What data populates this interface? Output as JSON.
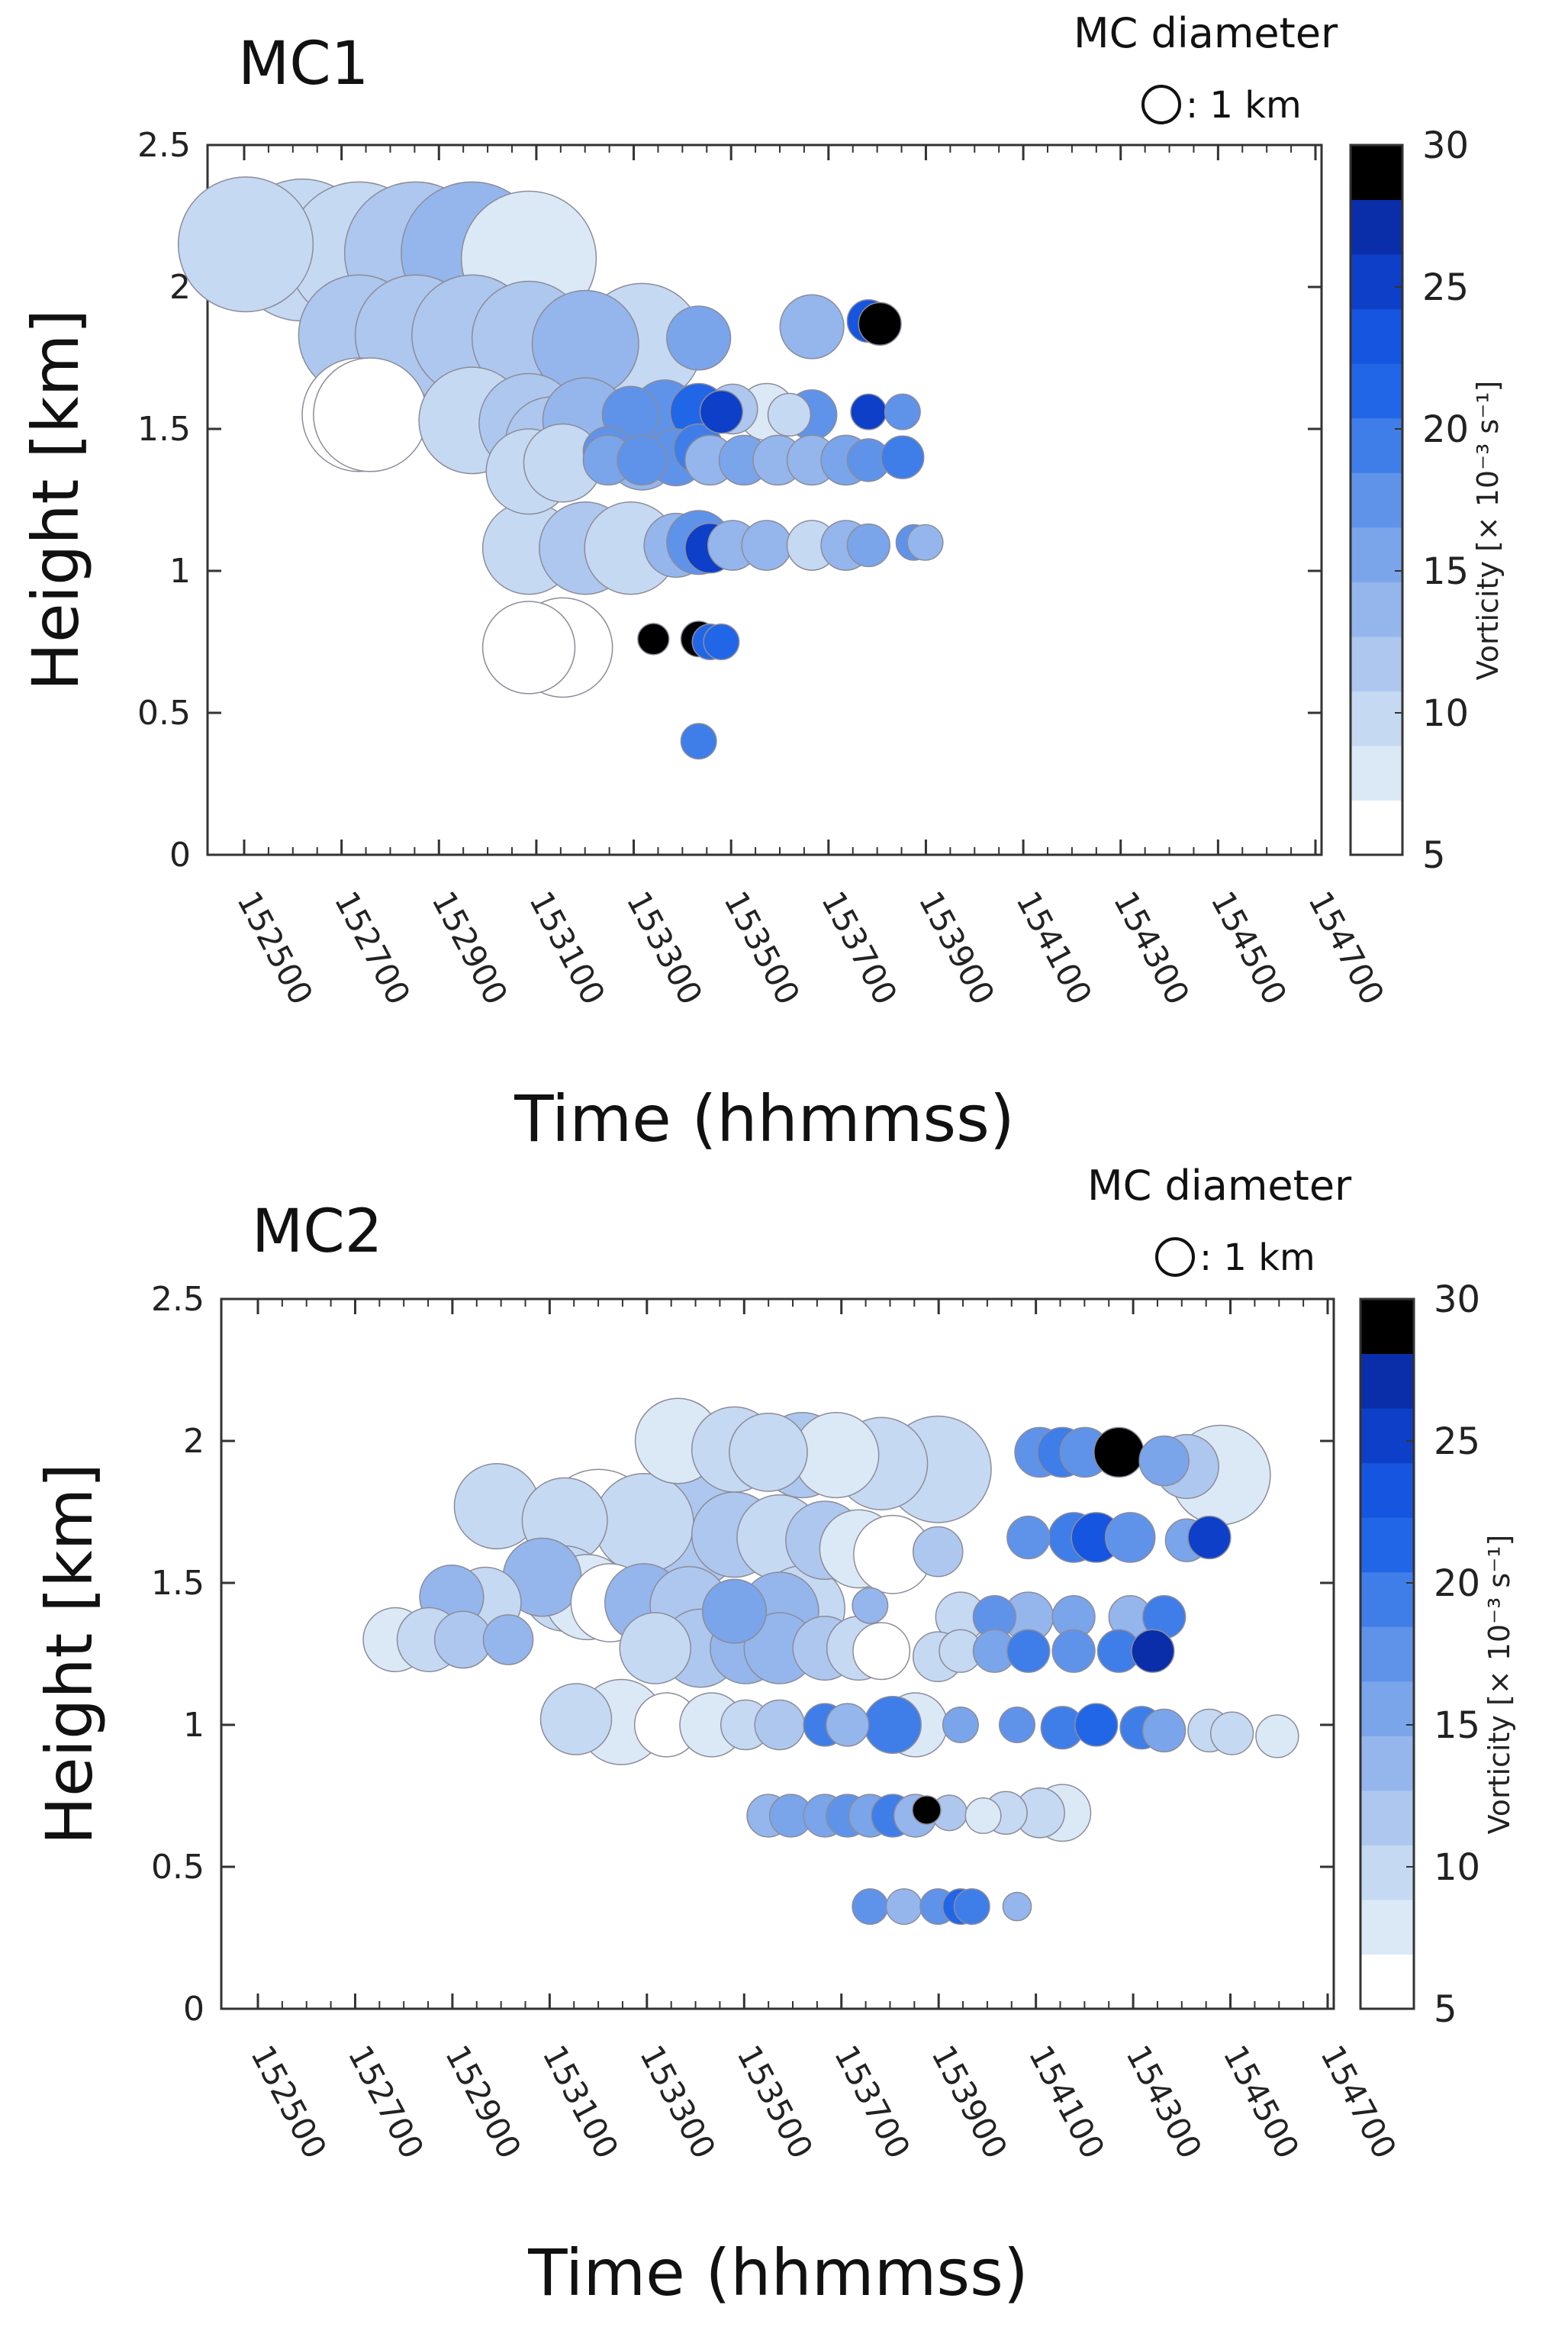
{
  "legend": {
    "title": "MC diameter",
    "note": ": 1 km"
  },
  "colorbar": {
    "label": "Vorticity [× 10⁻³ s⁻¹]",
    "min": 5,
    "max": 30,
    "ticks": [
      5,
      10,
      15,
      20,
      25,
      30
    ],
    "colors": [
      "#ffffff",
      "#dbe9f7",
      "#c5d9f2",
      "#aec7ee",
      "#94b6ec",
      "#7aa5ea",
      "#5f93ea",
      "#3f7ee8",
      "#2166e6",
      "#1655df",
      "#0d3fc8",
      "#0a2ea9",
      "#000000"
    ]
  },
  "chart_data": [
    {
      "type": "scatter",
      "title": "MC1",
      "xlabel": "Time (hhmmss)",
      "ylabel": "Height [km]",
      "xlim": [
        152400,
        154700
      ],
      "ylim": [
        0,
        2.5
      ],
      "xticks": [
        "152500",
        "152700",
        "152900",
        "153100",
        "153300",
        "153500",
        "153700",
        "153900",
        "154100",
        "154300",
        "154500",
        "154700"
      ],
      "yticks": [
        "0",
        "0.5",
        "1",
        "1.5",
        "2",
        "2.5"
      ],
      "points": [
        {
          "t": 0,
          "h": 2.15,
          "d": 0.95,
          "v": 9
        },
        {
          "t": 5,
          "h": 2.13,
          "d": 1.0,
          "v": 10
        },
        {
          "t": 10,
          "h": 2.12,
          "d": 1.0,
          "v": 10
        },
        {
          "t": 15,
          "h": 2.12,
          "d": 1.0,
          "v": 11
        },
        {
          "t": 20,
          "h": 2.12,
          "d": 1.0,
          "v": 13
        },
        {
          "t": 25,
          "h": 2.1,
          "d": 0.95,
          "v": 8
        },
        {
          "t": 10,
          "h": 1.83,
          "d": 0.85,
          "v": 11
        },
        {
          "t": 15,
          "h": 1.83,
          "d": 0.85,
          "v": 11
        },
        {
          "t": 20,
          "h": 1.83,
          "d": 0.85,
          "v": 12
        },
        {
          "t": 25,
          "h": 1.82,
          "d": 0.8,
          "v": 11
        },
        {
          "t": 30,
          "h": 1.8,
          "d": 0.75,
          "v": 14
        },
        {
          "t": 35,
          "h": 1.8,
          "d": 0.85,
          "v": 9
        },
        {
          "t": 40,
          "h": 1.82,
          "d": 0.45,
          "v": 16
        },
        {
          "t": 50,
          "h": 1.86,
          "d": 0.45,
          "v": 13
        },
        {
          "t": 55,
          "h": 1.88,
          "d": 0.3,
          "v": 23
        },
        {
          "t": 56,
          "h": 1.87,
          "d": 0.3,
          "v": 30
        },
        {
          "t": 10,
          "h": 1.55,
          "d": 0.8,
          "v": 5
        },
        {
          "t": 11,
          "h": 1.55,
          "d": 0.8,
          "v": 5
        },
        {
          "t": 20,
          "h": 1.53,
          "d": 0.75,
          "v": 10
        },
        {
          "t": 25,
          "h": 1.52,
          "d": 0.7,
          "v": 12
        },
        {
          "t": 30,
          "h": 1.53,
          "d": 0.6,
          "v": 14
        },
        {
          "t": 34,
          "h": 1.55,
          "d": 0.4,
          "v": 17
        },
        {
          "t": 37,
          "h": 1.56,
          "d": 0.45,
          "v": 18
        },
        {
          "t": 40,
          "h": 1.56,
          "d": 0.4,
          "v": 21
        },
        {
          "t": 42,
          "h": 1.56,
          "d": 0.3,
          "v": 26
        },
        {
          "t": 43,
          "h": 1.57,
          "d": 0.35,
          "v": 12
        },
        {
          "t": 46,
          "h": 1.56,
          "d": 0.4,
          "v": 7
        },
        {
          "t": 48,
          "h": 1.55,
          "d": 0.3,
          "v": 9
        },
        {
          "t": 50,
          "h": 1.55,
          "d": 0.35,
          "v": 18
        },
        {
          "t": 55,
          "h": 1.56,
          "d": 0.25,
          "v": 25
        },
        {
          "t": 58,
          "h": 1.56,
          "d": 0.25,
          "v": 18
        },
        {
          "t": 27,
          "h": 1.45,
          "d": 0.65,
          "v": 12
        },
        {
          "t": 32,
          "h": 1.42,
          "d": 0.35,
          "v": 17
        },
        {
          "t": 35,
          "h": 1.41,
          "d": 0.5,
          "v": 14
        },
        {
          "t": 25,
          "h": 1.35,
          "d": 0.6,
          "v": 10
        },
        {
          "t": 28,
          "h": 1.38,
          "d": 0.55,
          "v": 10
        },
        {
          "t": 32,
          "h": 1.39,
          "d": 0.35,
          "v": 15
        },
        {
          "t": 35,
          "h": 1.39,
          "d": 0.35,
          "v": 17
        },
        {
          "t": 38,
          "h": 1.4,
          "d": 0.4,
          "v": 18
        },
        {
          "t": 40,
          "h": 1.43,
          "d": 0.35,
          "v": 20
        },
        {
          "t": 41,
          "h": 1.39,
          "d": 0.35,
          "v": 14
        },
        {
          "t": 44,
          "h": 1.39,
          "d": 0.35,
          "v": 15
        },
        {
          "t": 47,
          "h": 1.39,
          "d": 0.35,
          "v": 14
        },
        {
          "t": 50,
          "h": 1.39,
          "d": 0.35,
          "v": 13
        },
        {
          "t": 53,
          "h": 1.39,
          "d": 0.35,
          "v": 15
        },
        {
          "t": 55,
          "h": 1.39,
          "d": 0.3,
          "v": 18
        },
        {
          "t": 58,
          "h": 1.4,
          "d": 0.3,
          "v": 20
        },
        {
          "t": 25,
          "h": 1.08,
          "d": 0.65,
          "v": 9
        },
        {
          "t": 30,
          "h": 1.08,
          "d": 0.65,
          "v": 12
        },
        {
          "t": 34,
          "h": 1.08,
          "d": 0.65,
          "v": 10
        },
        {
          "t": 38,
          "h": 1.09,
          "d": 0.45,
          "v": 14
        },
        {
          "t": 40,
          "h": 1.1,
          "d": 0.45,
          "v": 17
        },
        {
          "t": 41,
          "h": 1.08,
          "d": 0.35,
          "v": 26
        },
        {
          "t": 43,
          "h": 1.09,
          "d": 0.35,
          "v": 14
        },
        {
          "t": 46,
          "h": 1.09,
          "d": 0.35,
          "v": 14
        },
        {
          "t": 50,
          "h": 1.09,
          "d": 0.35,
          "v": 10
        },
        {
          "t": 53,
          "h": 1.09,
          "d": 0.35,
          "v": 13
        },
        {
          "t": 55,
          "h": 1.09,
          "d": 0.3,
          "v": 15
        },
        {
          "t": 59,
          "h": 1.1,
          "d": 0.25,
          "v": 18
        },
        {
          "t": 60,
          "h": 1.1,
          "d": 0.25,
          "v": 13
        },
        {
          "t": 25,
          "h": 0.73,
          "d": 0.65,
          "v": 5
        },
        {
          "t": 28,
          "h": 0.73,
          "d": 0.7,
          "v": 5
        },
        {
          "t": 36,
          "h": 0.76,
          "d": 0.22,
          "v": 30
        },
        {
          "t": 40,
          "h": 0.76,
          "d": 0.25,
          "v": 30
        },
        {
          "t": 41,
          "h": 0.75,
          "d": 0.25,
          "v": 22
        },
        {
          "t": 42,
          "h": 0.75,
          "d": 0.25,
          "v": 21
        },
        {
          "t": 40,
          "h": 0.4,
          "d": 0.25,
          "v": 20
        }
      ]
    },
    {
      "type": "scatter",
      "title": "MC2",
      "xlabel": "Time (hhmmss)",
      "ylabel": "Height [km]",
      "xlim": [
        152400,
        154700
      ],
      "ylim": [
        0,
        2.5
      ],
      "xticks": [
        "152500",
        "152700",
        "152900",
        "153100",
        "153300",
        "153500",
        "153700",
        "153900",
        "154100",
        "154300",
        "154500",
        "154700"
      ],
      "yticks": [
        "0",
        "0.5",
        "1",
        "1.5",
        "2",
        "2.5"
      ],
      "points": [
        {
          "t": 37,
          "h": 2.0,
          "d": 0.6,
          "v": 8
        },
        {
          "t": 42,
          "h": 1.97,
          "d": 0.6,
          "v": 9
        },
        {
          "t": 45,
          "h": 1.96,
          "d": 0.55,
          "v": 10
        },
        {
          "t": 48,
          "h": 1.95,
          "d": 0.6,
          "v": 11
        },
        {
          "t": 51,
          "h": 1.95,
          "d": 0.6,
          "v": 8
        },
        {
          "t": 55,
          "h": 1.92,
          "d": 0.65,
          "v": 9
        },
        {
          "t": 60,
          "h": 1.9,
          "d": 0.75,
          "v": 9
        },
        {
          "t": 69,
          "h": 1.96,
          "d": 0.35,
          "v": 18
        },
        {
          "t": 71,
          "h": 1.96,
          "d": 0.35,
          "v": 20
        },
        {
          "t": 73,
          "h": 1.96,
          "d": 0.35,
          "v": 17
        },
        {
          "t": 76,
          "h": 1.96,
          "d": 0.35,
          "v": 30
        },
        {
          "t": 80,
          "h": 1.93,
          "d": 0.35,
          "v": 15
        },
        {
          "t": 82,
          "h": 1.91,
          "d": 0.45,
          "v": 12
        },
        {
          "t": 85,
          "h": 1.88,
          "d": 0.7,
          "v": 8
        },
        {
          "t": 21,
          "h": 1.77,
          "d": 0.6,
          "v": 9
        },
        {
          "t": 27,
          "h": 1.72,
          "d": 0.6,
          "v": 9
        },
        {
          "t": 30,
          "h": 1.7,
          "d": 0.8,
          "v": 6
        },
        {
          "t": 34,
          "h": 1.71,
          "d": 0.7,
          "v": 10
        },
        {
          "t": 38,
          "h": 1.68,
          "d": 0.8,
          "v": 11
        },
        {
          "t": 42,
          "h": 1.67,
          "d": 0.6,
          "v": 12
        },
        {
          "t": 46,
          "h": 1.66,
          "d": 0.6,
          "v": 10
        },
        {
          "t": 50,
          "h": 1.65,
          "d": 0.55,
          "v": 12
        },
        {
          "t": 53,
          "h": 1.62,
          "d": 0.55,
          "v": 8
        },
        {
          "t": 56,
          "h": 1.6,
          "d": 0.55,
          "v": 6
        },
        {
          "t": 60,
          "h": 1.61,
          "d": 0.35,
          "v": 12
        },
        {
          "t": 68,
          "h": 1.66,
          "d": 0.3,
          "v": 17
        },
        {
          "t": 72,
          "h": 1.66,
          "d": 0.35,
          "v": 19
        },
        {
          "t": 74,
          "h": 1.66,
          "d": 0.35,
          "v": 24
        },
        {
          "t": 77,
          "h": 1.66,
          "d": 0.35,
          "v": 18
        },
        {
          "t": 82,
          "h": 1.65,
          "d": 0.3,
          "v": 15
        },
        {
          "t": 84,
          "h": 1.66,
          "d": 0.3,
          "v": 25
        },
        {
          "t": 25,
          "h": 1.52,
          "d": 0.55,
          "v": 13
        },
        {
          "t": 27,
          "h": 1.48,
          "d": 0.6,
          "v": 9
        },
        {
          "t": 29,
          "h": 1.45,
          "d": 0.6,
          "v": 8
        },
        {
          "t": 31,
          "h": 1.43,
          "d": 0.55,
          "v": 5
        },
        {
          "t": 17,
          "h": 1.45,
          "d": 0.45,
          "v": 13
        },
        {
          "t": 20,
          "h": 1.43,
          "d": 0.5,
          "v": 10
        },
        {
          "t": 34,
          "h": 1.43,
          "d": 0.55,
          "v": 14
        },
        {
          "t": 38,
          "h": 1.42,
          "d": 0.55,
          "v": 12
        },
        {
          "t": 42,
          "h": 1.4,
          "d": 0.45,
          "v": 16
        },
        {
          "t": 46,
          "h": 1.4,
          "d": 0.55,
          "v": 14
        },
        {
          "t": 48,
          "h": 1.41,
          "d": 0.6,
          "v": 9
        },
        {
          "t": 54,
          "h": 1.42,
          "d": 0.25,
          "v": 13
        },
        {
          "t": 62,
          "h": 1.38,
          "d": 0.35,
          "v": 10
        },
        {
          "t": 65,
          "h": 1.38,
          "d": 0.3,
          "v": 17
        },
        {
          "t": 68,
          "h": 1.38,
          "d": 0.35,
          "v": 13
        },
        {
          "t": 72,
          "h": 1.38,
          "d": 0.3,
          "v": 15
        },
        {
          "t": 77,
          "h": 1.38,
          "d": 0.3,
          "v": 14
        },
        {
          "t": 80,
          "h": 1.38,
          "d": 0.3,
          "v": 20
        },
        {
          "t": 12,
          "h": 1.3,
          "d": 0.45,
          "v": 8
        },
        {
          "t": 15,
          "h": 1.3,
          "d": 0.45,
          "v": 10
        },
        {
          "t": 18,
          "h": 1.3,
          "d": 0.4,
          "v": 11
        },
        {
          "t": 22,
          "h": 1.3,
          "d": 0.35,
          "v": 14
        },
        {
          "t": 35,
          "h": 1.27,
          "d": 0.5,
          "v": 10
        },
        {
          "t": 39,
          "h": 1.27,
          "d": 0.55,
          "v": 11
        },
        {
          "t": 43,
          "h": 1.27,
          "d": 0.5,
          "v": 13
        },
        {
          "t": 46,
          "h": 1.27,
          "d": 0.5,
          "v": 13
        },
        {
          "t": 50,
          "h": 1.27,
          "d": 0.45,
          "v": 11
        },
        {
          "t": 53,
          "h": 1.27,
          "d": 0.45,
          "v": 10
        },
        {
          "t": 55,
          "h": 1.26,
          "d": 0.4,
          "v": 5
        },
        {
          "t": 60,
          "h": 1.24,
          "d": 0.35,
          "v": 9
        },
        {
          "t": 62,
          "h": 1.26,
          "d": 0.3,
          "v": 10
        },
        {
          "t": 65,
          "h": 1.26,
          "d": 0.3,
          "v": 15
        },
        {
          "t": 68,
          "h": 1.26,
          "d": 0.3,
          "v": 19
        },
        {
          "t": 72,
          "h": 1.26,
          "d": 0.3,
          "v": 17
        },
        {
          "t": 76,
          "h": 1.26,
          "d": 0.3,
          "v": 20
        },
        {
          "t": 79,
          "h": 1.26,
          "d": 0.3,
          "v": 27
        },
        {
          "t": 28,
          "h": 1.02,
          "d": 0.5,
          "v": 9
        },
        {
          "t": 32,
          "h": 1.01,
          "d": 0.6,
          "v": 8
        },
        {
          "t": 36,
          "h": 1.0,
          "d": 0.45,
          "v": 5
        },
        {
          "t": 40,
          "h": 1.0,
          "d": 0.45,
          "v": 8
        },
        {
          "t": 43,
          "h": 1.0,
          "d": 0.35,
          "v": 10
        },
        {
          "t": 46,
          "h": 1.0,
          "d": 0.35,
          "v": 11
        },
        {
          "t": 50,
          "h": 1.0,
          "d": 0.3,
          "v": 19
        },
        {
          "t": 52,
          "h": 1.0,
          "d": 0.3,
          "v": 14
        },
        {
          "t": 56,
          "h": 1.0,
          "d": 0.4,
          "v": 20
        },
        {
          "t": 58,
          "h": 1.0,
          "d": 0.45,
          "v": 7
        },
        {
          "t": 62,
          "h": 1.0,
          "d": 0.25,
          "v": 15
        },
        {
          "t": 67,
          "h": 1.0,
          "d": 0.25,
          "v": 17
        },
        {
          "t": 71,
          "h": 0.99,
          "d": 0.3,
          "v": 20
        },
        {
          "t": 74,
          "h": 1.0,
          "d": 0.3,
          "v": 22
        },
        {
          "t": 78,
          "h": 0.99,
          "d": 0.3,
          "v": 20
        },
        {
          "t": 80,
          "h": 0.98,
          "d": 0.3,
          "v": 16
        },
        {
          "t": 84,
          "h": 0.98,
          "d": 0.3,
          "v": 10
        },
        {
          "t": 86,
          "h": 0.97,
          "d": 0.3,
          "v": 9
        },
        {
          "t": 90,
          "h": 0.96,
          "d": 0.3,
          "v": 8
        },
        {
          "t": 45,
          "h": 0.68,
          "d": 0.3,
          "v": 14
        },
        {
          "t": 47,
          "h": 0.68,
          "d": 0.3,
          "v": 15
        },
        {
          "t": 50,
          "h": 0.68,
          "d": 0.3,
          "v": 16
        },
        {
          "t": 52,
          "h": 0.68,
          "d": 0.3,
          "v": 18
        },
        {
          "t": 54,
          "h": 0.68,
          "d": 0.3,
          "v": 16
        },
        {
          "t": 56,
          "h": 0.68,
          "d": 0.3,
          "v": 20
        },
        {
          "t": 58,
          "h": 0.68,
          "d": 0.3,
          "v": 14
        },
        {
          "t": 59,
          "h": 0.7,
          "d": 0.2,
          "v": 30
        },
        {
          "t": 61,
          "h": 0.69,
          "d": 0.25,
          "v": 11
        },
        {
          "t": 64,
          "h": 0.68,
          "d": 0.25,
          "v": 8
        },
        {
          "t": 66,
          "h": 0.69,
          "d": 0.3,
          "v": 9
        },
        {
          "t": 69,
          "h": 0.69,
          "d": 0.35,
          "v": 9
        },
        {
          "t": 71,
          "h": 0.69,
          "d": 0.4,
          "v": 8
        },
        {
          "t": 54,
          "h": 0.36,
          "d": 0.25,
          "v": 17
        },
        {
          "t": 57,
          "h": 0.36,
          "d": 0.25,
          "v": 14
        },
        {
          "t": 60,
          "h": 0.36,
          "d": 0.25,
          "v": 18
        },
        {
          "t": 62,
          "h": 0.36,
          "d": 0.25,
          "v": 21
        },
        {
          "t": 63,
          "h": 0.36,
          "d": 0.25,
          "v": 20
        },
        {
          "t": 67,
          "h": 0.36,
          "d": 0.2,
          "v": 14
        }
      ]
    }
  ]
}
